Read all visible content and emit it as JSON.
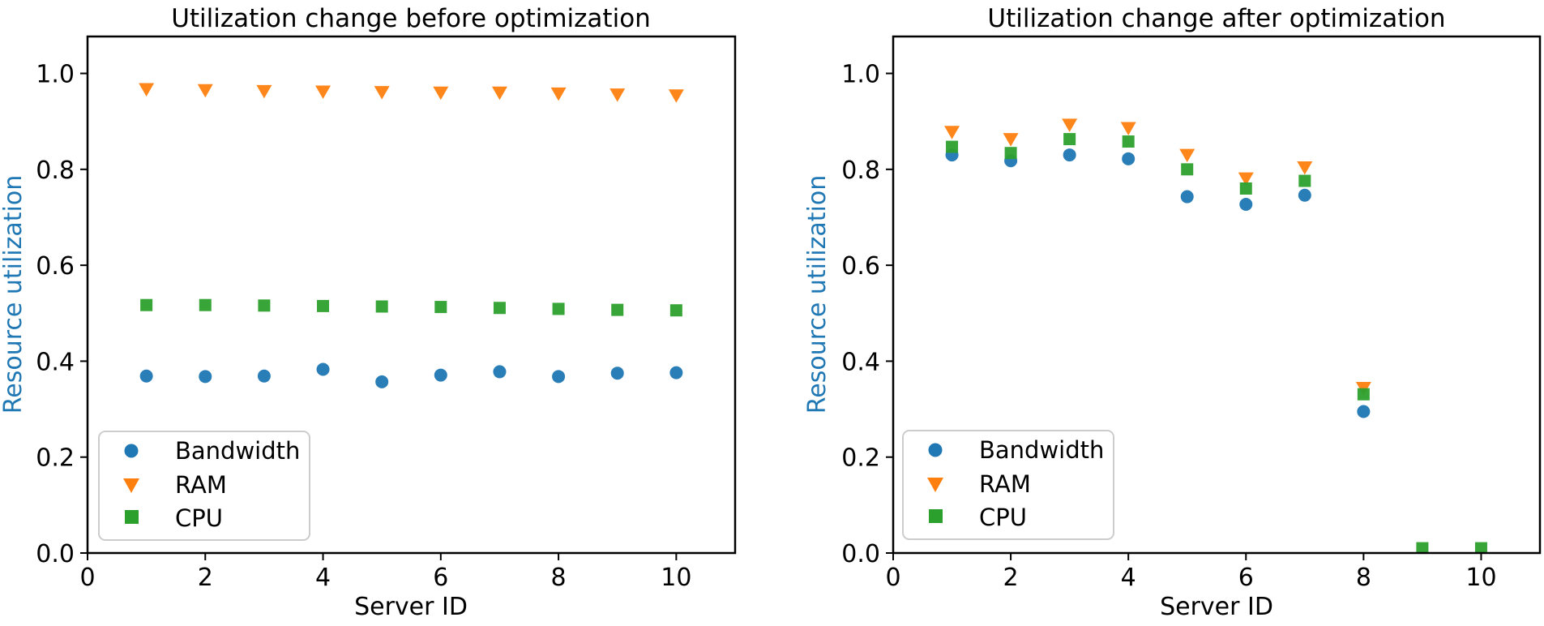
{
  "figure": {
    "background": "#ffffff",
    "axis_color": "#000000",
    "ylabel_color": "#1f77b4",
    "legend_border_color": "#cccccc"
  },
  "chart_data": [
    {
      "type": "scatter",
      "title": "Utilization change before optimization",
      "xlabel": "Server ID",
      "ylabel": "Resource utilization",
      "x": [
        1,
        2,
        3,
        4,
        5,
        6,
        7,
        8,
        9,
        10
      ],
      "xlim": [
        0,
        11
      ],
      "ylim": [
        0,
        1.077
      ],
      "xticks": [
        0,
        2,
        4,
        6,
        8,
        10
      ],
      "yticks": [
        0.0,
        0.2,
        0.4,
        0.6,
        0.8,
        1.0
      ],
      "grid": false,
      "legend_position": "lower left",
      "series": [
        {
          "name": "Bandwidth",
          "marker": "circle",
          "color": "#1f77b4",
          "values": [
            0.369,
            0.368,
            0.369,
            0.383,
            0.357,
            0.371,
            0.378,
            0.368,
            0.375,
            0.376
          ]
        },
        {
          "name": "RAM",
          "marker": "triangle-down",
          "color": "#ff7f0e",
          "values": [
            0.967,
            0.965,
            0.963,
            0.962,
            0.961,
            0.96,
            0.96,
            0.958,
            0.956,
            0.954
          ]
        },
        {
          "name": "CPU",
          "marker": "square",
          "color": "#2ca02c",
          "values": [
            0.517,
            0.517,
            0.516,
            0.515,
            0.514,
            0.513,
            0.511,
            0.509,
            0.507,
            0.506
          ]
        }
      ]
    },
    {
      "type": "scatter",
      "title": "Utilization change after optimization",
      "xlabel": "Server ID",
      "ylabel": "Resource utilization",
      "x": [
        1,
        2,
        3,
        4,
        5,
        6,
        7,
        8,
        9,
        10
      ],
      "xlim": [
        0,
        11
      ],
      "ylim": [
        0,
        1.077
      ],
      "xticks": [
        0,
        2,
        4,
        6,
        8,
        10
      ],
      "yticks": [
        0.0,
        0.2,
        0.4,
        0.6,
        0.8,
        1.0
      ],
      "grid": false,
      "legend_position": "lower left",
      "series": [
        {
          "name": "Bandwidth",
          "marker": "circle",
          "color": "#1f77b4",
          "values": [
            0.83,
            0.818,
            0.83,
            0.822,
            0.743,
            0.727,
            0.746,
            0.295,
            null,
            null
          ]
        },
        {
          "name": "RAM",
          "marker": "triangle-down",
          "color": "#ff7f0e",
          "values": [
            0.878,
            0.863,
            0.893,
            0.886,
            0.83,
            0.781,
            0.804,
            0.344,
            null,
            null
          ]
        },
        {
          "name": "CPU",
          "marker": "square",
          "color": "#2ca02c",
          "values": [
            0.847,
            0.834,
            0.863,
            0.858,
            0.8,
            0.76,
            0.776,
            0.331,
            0.01,
            0.01
          ]
        }
      ]
    }
  ]
}
